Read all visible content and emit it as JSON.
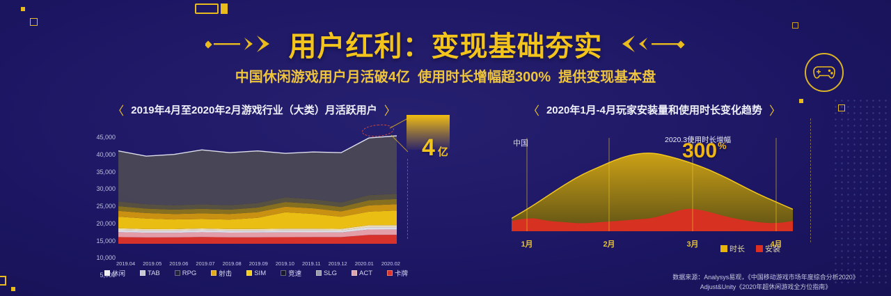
{
  "header": {
    "title": "用户红利：变现基础夯实",
    "subtitle": "中国休闲游戏用户月活破4亿  使用时长增幅超300%  提供变现基本盘"
  },
  "left_chart": {
    "bracket_left": "〈",
    "bracket_right": "〉",
    "title": "2019年4月至2020年2月游戏行业（大类）月活跃用户",
    "callout_value": "4",
    "callout_unit": "亿"
  },
  "right_chart": {
    "bracket_left": "〈",
    "bracket_right": "〉",
    "title": "2020年1月-4月玩家安装量和使用时长变化趋势",
    "region_label": "中国",
    "annotation_label": "2020.3使用时长增幅",
    "annotation_value": "300",
    "annotation_unit": "%"
  },
  "source": {
    "line1": "数据来源：Analysys易观，《中国移动游戏市场年度综合分析2020》",
    "line2": "Adjust&Unity《2020年超休闲游戏全方位指南》"
  },
  "colors": {
    "background": "#1c1663",
    "accent_gold": "#f2c41c",
    "red": "#df332a",
    "text_light": "#d5d8ee"
  },
  "chart_data": [
    {
      "type": "area",
      "stacked": true,
      "title": "2019年4月至2020年2月游戏行业（大类）月活跃用户",
      "categories": [
        "2019.04",
        "2019.05",
        "2019.06",
        "2019.07",
        "2019.08",
        "2019.09",
        "2019.10",
        "2019.11",
        "2019.12",
        "2020.01",
        "2020.02"
      ],
      "y_ticks": [
        "45,000",
        "40,000",
        "35,000",
        "30,000",
        "25,000",
        "20,000",
        "15,000",
        "10,000",
        "5,000"
      ],
      "ylim": [
        5000,
        45000
      ],
      "highlight": "2020.01-2020.02 峰值约45,000 (≈4亿)",
      "series": [
        {
          "name": "卡牌",
          "color": "#df332a",
          "values": [
            3000,
            2900,
            2900,
            3000,
            2900,
            2900,
            3000,
            3000,
            3000,
            3800,
            3800
          ]
        },
        {
          "name": "ACT",
          "color": "#eba3ab",
          "values": [
            2200,
            2150,
            2100,
            2150,
            2100,
            2100,
            2150,
            2150,
            2100,
            2300,
            2300
          ]
        },
        {
          "name": "SLG",
          "color": "#e6e6ec",
          "values": [
            900,
            880,
            860,
            880,
            860,
            860,
            880,
            880,
            860,
            950,
            950
          ]
        },
        {
          "name": "竞速",
          "color": "#f2e3b8",
          "values": [
            800,
            780,
            760,
            780,
            760,
            760,
            780,
            780,
            760,
            850,
            850
          ]
        },
        {
          "name": "SIM",
          "color": "#f3c50f",
          "values": [
            5200,
            4800,
            4400,
            4200,
            4300,
            5000,
            7400,
            6600,
            5400,
            5800,
            6200
          ]
        },
        {
          "name": "射击",
          "color": "#d0960f",
          "values": [
            2600,
            2500,
            2450,
            2500,
            2450,
            2500,
            2550,
            2500,
            2450,
            2700,
            2700
          ]
        },
        {
          "name": "RPG",
          "color": "#8a741c",
          "values": [
            2100,
            2050,
            2000,
            2050,
            2000,
            2050,
            2100,
            2050,
            2000,
            2200,
            2200
          ]
        },
        {
          "name": "TAB",
          "color": "#595340",
          "values": [
            2100,
            2050,
            2000,
            2050,
            2000,
            2050,
            2100,
            2050,
            2000,
            2200,
            2200
          ]
        },
        {
          "name": "休闲",
          "color": "#4a4756",
          "values": [
            22600,
            21890,
            23030,
            24190,
            23630,
            23280,
            19840,
            21190,
            22430,
            24400,
            24600
          ]
        }
      ],
      "legend": [
        {
          "label": "休闲",
          "color": "#ececf2"
        },
        {
          "label": "TAB",
          "color": "#c6c6d4"
        },
        {
          "label": "RPG",
          "color": "#23233f"
        },
        {
          "label": "射击",
          "color": "#e2aa16"
        },
        {
          "label": "SIM",
          "color": "#f4ce1a"
        },
        {
          "label": "竞速",
          "color": "#17172f"
        },
        {
          "label": "SLG",
          "color": "#9a9aad"
        },
        {
          "label": "ACT",
          "color": "#dca4ac"
        },
        {
          "label": "卡牌",
          "color": "#df332a"
        }
      ]
    },
    {
      "type": "area",
      "title": "2020年1月-4月玩家安装量和使用时长变化趋势",
      "region": "中国",
      "x_ticks": [
        "1月",
        "2月",
        "3月",
        "4月"
      ],
      "annotation": "2020.3使用时长增幅 300%",
      "series": [
        {
          "name": "时长",
          "color": "#e7b50c",
          "values": [
            10,
            18,
            27,
            36,
            44,
            50,
            56,
            60,
            61,
            58,
            54,
            49,
            43,
            36,
            29,
            23,
            17
          ]
        },
        {
          "name": "安装",
          "color": "#dc2f22",
          "values": [
            8,
            11,
            8,
            7,
            6,
            7,
            8,
            9,
            10,
            14,
            18,
            16,
            12,
            9,
            7,
            6,
            8
          ]
        }
      ],
      "legend_position": "bottom-right"
    }
  ]
}
